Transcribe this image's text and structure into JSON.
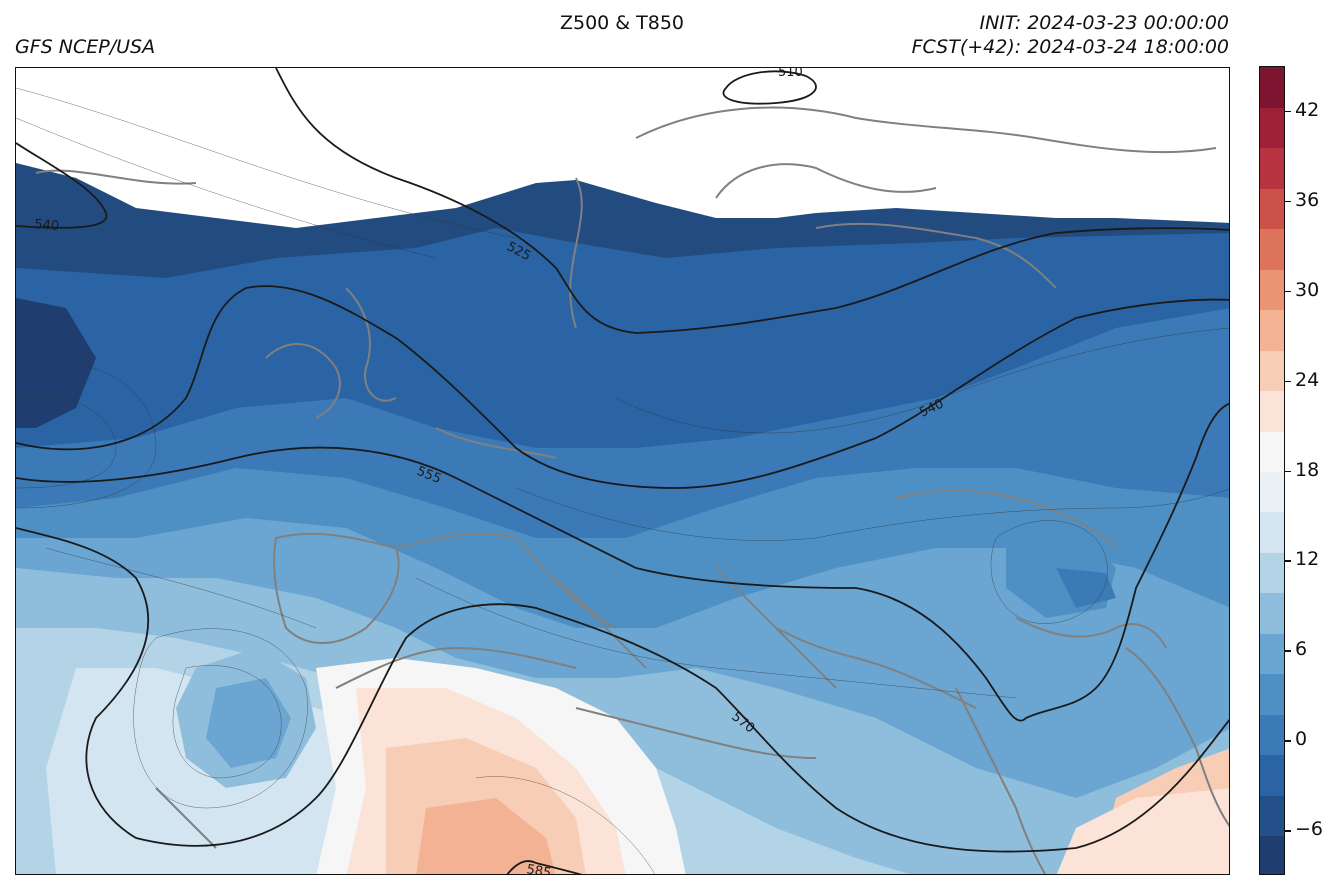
{
  "header": {
    "title": "Z500 & T850",
    "source": "GFS NCEP/USA",
    "init": "INIT: 2024-03-23 00:00:00",
    "forecast": "FCST(+42): 2024-03-24 18:00:00"
  },
  "map": {
    "contour_labels": [
      "510",
      "525",
      "540",
      "540",
      "555",
      "570",
      "585"
    ],
    "contour_color": "#1a1a1a",
    "coastline_color": "#808080"
  },
  "colorbar": {
    "min": -9,
    "max": 45,
    "step": 3,
    "tick_labels": [
      "−6",
      "0",
      "6",
      "12",
      "18",
      "24",
      "30",
      "36",
      "42"
    ],
    "tick_values": [
      -6,
      0,
      6,
      12,
      18,
      24,
      30,
      36,
      42
    ],
    "colors": [
      "#1f3d6e",
      "#24508a",
      "#2a64a4",
      "#3b7ab7",
      "#4f90c4",
      "#6aa6d1",
      "#8fbedc",
      "#b3d3e7",
      "#d2e5f0",
      "#e9f1f6",
      "#f6f6f6",
      "#fbe3d7",
      "#f8cdb6",
      "#f3b293",
      "#eb9474",
      "#de735c",
      "#cc5149",
      "#b83340",
      "#9e2037",
      "#7d1530"
    ]
  }
}
